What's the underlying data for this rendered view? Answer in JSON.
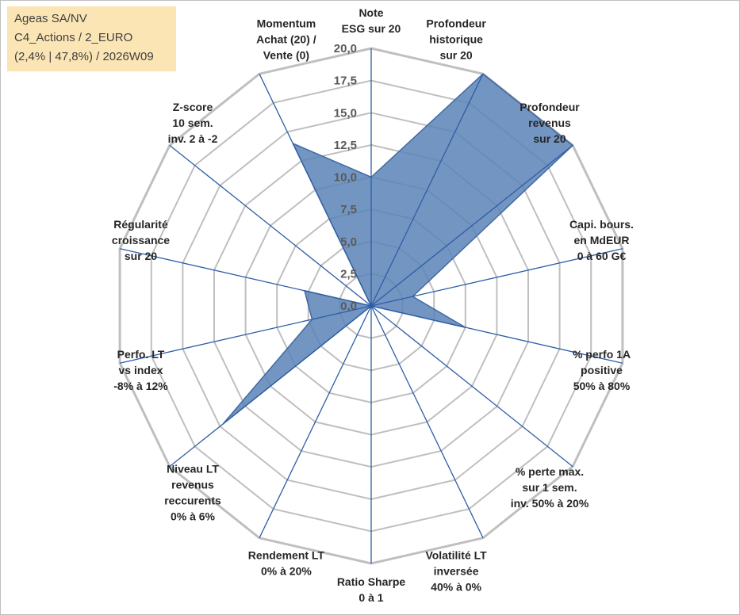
{
  "info_box": {
    "line1": "Ageas SA/NV",
    "line2": "C4_Actions / 2_EURO",
    "line3": "(2,4% | 47,8%) / 2026W09"
  },
  "chart_data": {
    "type": "radar",
    "r_min": 0,
    "r_max": 20,
    "r_ticks": [
      "0,0",
      "2,5",
      "5,0",
      "7,5",
      "10,0",
      "12,5",
      "15,0",
      "17,5",
      "20,0"
    ],
    "grid": true,
    "categories": [
      [
        "Note",
        "ESG sur 20"
      ],
      [
        "Profondeur",
        "historique",
        "sur 20"
      ],
      [
        "Profondeur",
        "revenus",
        "sur 20"
      ],
      [
        "Capi. bours.",
        "en MdEUR",
        "0 à 60 G€"
      ],
      [
        "% perfo 1A",
        "positive",
        "50% à 80%"
      ],
      [
        "% perte max.",
        "sur 1 sem.",
        "inv. 50% à 20%"
      ],
      [
        "Volatilité LT",
        "inversée",
        "40% à 0%"
      ],
      [
        "Ratio Sharpe",
        "0 à 1"
      ],
      [
        "Rendement LT",
        "0% à 20%"
      ],
      [
        "Niveau LT",
        "revenus",
        "reccurents",
        "0% à 6%"
      ],
      [
        "Perfo. LT",
        "vs index",
        "-8% à 12%"
      ],
      [
        "Régularité",
        "croissance",
        "sur 20"
      ],
      [
        "Z-score",
        "10 sem.",
        "inv. 2 à -2"
      ],
      [
        "Momentum",
        "Achat (20) /",
        "Vente (0)"
      ]
    ],
    "series": [
      {
        "values": [
          10,
          20,
          20,
          3.3,
          7.5,
          0,
          0,
          0,
          0,
          14.7,
          4.7,
          5.3,
          0,
          14
        ],
        "fill": "#5b83b7",
        "stroke": "#3f6aa3"
      }
    ],
    "colors": {
      "grid": "#bfbfbf",
      "spoke": "#2e5ea6",
      "fill": "#5b83b7"
    }
  }
}
